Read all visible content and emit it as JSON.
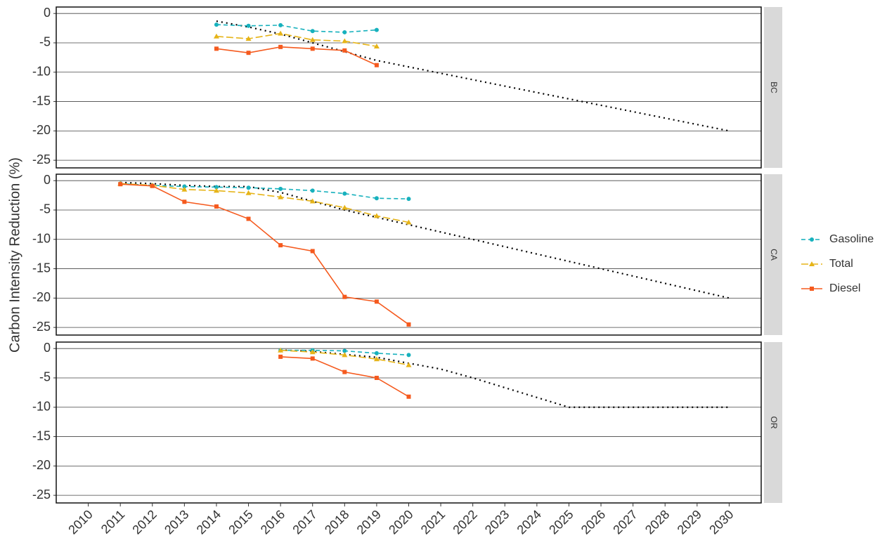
{
  "chart_data": [
    {
      "type": "line",
      "facet": "BC",
      "ylabel": "Carbon Intensity Reduction (%)",
      "legend": "right",
      "grid": true,
      "xlim": [
        2009,
        2031
      ],
      "ylim": [
        -26.3,
        1.1
      ],
      "yticks": [
        0,
        -5,
        -10,
        -15,
        -20,
        -25
      ],
      "x": [
        2014,
        2015,
        2016,
        2017,
        2018,
        2019
      ],
      "series": [
        {
          "name": "Gasoline",
          "color": "#17b1bd",
          "dash": "dashed",
          "marker": "circle",
          "values": [
            -1.9,
            -2.1,
            -2.0,
            -3.0,
            -3.2,
            -2.8
          ]
        },
        {
          "name": "Total",
          "color": "#e6b418",
          "dash": "longdash",
          "marker": "triangle",
          "values": [
            -3.9,
            -4.3,
            -3.4,
            -4.5,
            -4.7,
            -5.6
          ]
        },
        {
          "name": "Diesel",
          "color": "#f55a1e",
          "dash": "solid",
          "marker": "square",
          "values": [
            -6.0,
            -6.7,
            -5.7,
            -6.0,
            -6.3,
            -8.8
          ]
        }
      ],
      "target": {
        "color": "#000000",
        "dash": "dotted",
        "x": [
          2014,
          2015,
          2016,
          2017,
          2018,
          2019,
          2020,
          2030
        ],
        "values": [
          -1.3,
          -2.3,
          -3.5,
          -5.0,
          -6.5,
          -8.0,
          -9.1,
          -20.0
        ]
      }
    },
    {
      "type": "line",
      "facet": "CA",
      "grid": true,
      "xlim": [
        2009,
        2031
      ],
      "ylim": [
        -26.3,
        1.1
      ],
      "yticks": [
        0,
        -5,
        -10,
        -15,
        -20,
        -25
      ],
      "x": [
        2011,
        2012,
        2013,
        2014,
        2015,
        2016,
        2017,
        2018,
        2019,
        2020
      ],
      "series": [
        {
          "name": "Gasoline",
          "color": "#17b1bd",
          "dash": "dashed",
          "marker": "circle",
          "values": [
            -0.5,
            -0.8,
            -1.0,
            -1.1,
            -1.2,
            -1.4,
            -1.7,
            -2.2,
            -3.0,
            -3.1
          ]
        },
        {
          "name": "Total",
          "color": "#e6b418",
          "dash": "longdash",
          "marker": "triangle",
          "values": [
            -0.5,
            -0.8,
            -1.5,
            -1.7,
            -2.1,
            -2.8,
            -3.5,
            -4.6,
            -6.0,
            -7.1
          ]
        },
        {
          "name": "Diesel",
          "color": "#f55a1e",
          "dash": "solid",
          "marker": "square",
          "values": [
            -0.6,
            -0.9,
            -3.6,
            -4.4,
            -6.5,
            -11.0,
            -12.0,
            -19.8,
            -20.6,
            -24.5
          ]
        }
      ],
      "target": {
        "color": "#000000",
        "dash": "dotted",
        "x": [
          2011,
          2012,
          2013,
          2014,
          2015,
          2016,
          2017,
          2018,
          2019,
          2020,
          2030
        ],
        "values": [
          -0.3,
          -0.5,
          -0.8,
          -1.0,
          -1.0,
          -2.0,
          -3.5,
          -5.0,
          -6.25,
          -7.5,
          -20.0
        ]
      }
    },
    {
      "type": "line",
      "facet": "OR",
      "grid": true,
      "xlim": [
        2009,
        2031
      ],
      "ylim": [
        -26.3,
        1.1
      ],
      "yticks": [
        0,
        -5,
        -10,
        -15,
        -20,
        -25
      ],
      "xticks": [
        2010,
        2011,
        2012,
        2013,
        2014,
        2015,
        2016,
        2017,
        2018,
        2019,
        2020,
        2021,
        2022,
        2023,
        2024,
        2025,
        2026,
        2027,
        2028,
        2029,
        2030
      ],
      "x": [
        2016,
        2017,
        2018,
        2019,
        2020
      ],
      "series": [
        {
          "name": "Gasoline",
          "color": "#17b1bd",
          "dash": "dashed",
          "marker": "circle",
          "values": [
            -0.3,
            -0.3,
            -0.4,
            -0.8,
            -1.1
          ]
        },
        {
          "name": "Total",
          "color": "#e6b418",
          "dash": "longdash",
          "marker": "triangle",
          "values": [
            -0.3,
            -0.6,
            -1.1,
            -1.8,
            -2.8
          ]
        },
        {
          "name": "Diesel",
          "color": "#f55a1e",
          "dash": "solid",
          "marker": "square",
          "values": [
            -1.4,
            -1.7,
            -4.0,
            -5.0,
            -8.2
          ]
        }
      ],
      "target": {
        "color": "#000000",
        "dash": "dotted",
        "x": [
          2016,
          2017,
          2018,
          2019,
          2020,
          2021,
          2022,
          2025,
          2030
        ],
        "values": [
          -0.25,
          -0.5,
          -1.0,
          -1.5,
          -2.5,
          -3.5,
          -5.0,
          -10.0,
          -10.0
        ]
      }
    }
  ]
}
